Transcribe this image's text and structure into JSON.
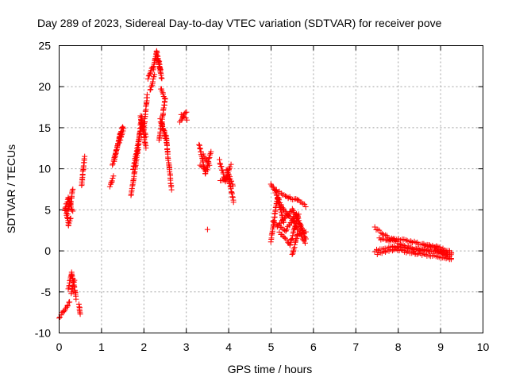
{
  "chart_data": {
    "type": "scatter",
    "title": "Day 289 of 2023, Sidereal Day-to-day VTEC variation (SDTVAR) for receiver pove",
    "xlabel": "GPS time / hours",
    "ylabel": "SDTVAR / TECUs",
    "xlim": [
      0,
      10
    ],
    "ylim": [
      -10,
      25
    ],
    "xticks": [
      0,
      1,
      2,
      3,
      4,
      5,
      6,
      7,
      8,
      9,
      10
    ],
    "yticks": [
      -10,
      -5,
      0,
      5,
      10,
      15,
      20,
      25
    ],
    "grid": true,
    "marker": "+",
    "color": "#ff0000",
    "series": [
      {
        "name": "SDTVAR",
        "segments": [
          {
            "x": [
              0.0,
              0.1,
              0.2,
              0.25
            ],
            "y": [
              -8.2,
              -7.4,
              -6.6,
              -6.2
            ]
          },
          {
            "x": [
              0.13,
              0.22,
              0.32
            ],
            "y": [
              5.0,
              6.4,
              4.8
            ]
          },
          {
            "x": [
              0.15,
              0.22,
              0.28
            ],
            "y": [
              5.2,
              3.2,
              4.0
            ]
          },
          {
            "x": [
              0.2,
              0.25
            ],
            "y": [
              4.5,
              6.0
            ]
          },
          {
            "x": [
              0.27,
              0.32
            ],
            "y": [
              5.5,
              7.6
            ]
          },
          {
            "x": [
              0.22,
              0.3,
              0.4
            ],
            "y": [
              -4.5,
              -2.7,
              -5.8
            ]
          },
          {
            "x": [
              0.28,
              0.36
            ],
            "y": [
              -5.2,
              -3.5
            ]
          },
          {
            "x": [
              0.47,
              0.5
            ],
            "y": [
              -6.5,
              -7.8
            ]
          },
          {
            "x": [
              0.53,
              0.6
            ],
            "y": [
              8.0,
              11.5
            ]
          },
          {
            "x": [
              1.2,
              1.28
            ],
            "y": [
              7.8,
              9.0
            ]
          },
          {
            "x": [
              1.26,
              1.5
            ],
            "y": [
              10.5,
              15.2
            ]
          },
          {
            "x": [
              1.3,
              1.45
            ],
            "y": [
              11.0,
              14.5
            ]
          },
          {
            "x": [
              1.42,
              1.52
            ],
            "y": [
              13.2,
              14.8
            ]
          },
          {
            "x": [
              1.7,
              1.85,
              1.95
            ],
            "y": [
              6.8,
              12.0,
              16.5
            ]
          },
          {
            "x": [
              1.75,
              1.95,
              2.05
            ],
            "y": [
              10.0,
              15.5,
              14.0
            ]
          },
          {
            "x": [
              1.92,
              2.05
            ],
            "y": [
              16.5,
              12.5
            ]
          },
          {
            "x": [
              2.0,
              2.08
            ],
            "y": [
              15.0,
              19.0
            ]
          },
          {
            "x": [
              2.1,
              2.2
            ],
            "y": [
              21.0,
              22.5
            ]
          },
          {
            "x": [
              2.15,
              2.25
            ],
            "y": [
              19.5,
              21.5
            ]
          },
          {
            "x": [
              2.22,
              2.3,
              2.38
            ],
            "y": [
              22.0,
              24.3,
              22.0
            ]
          },
          {
            "x": [
              2.28,
              2.36,
              2.42
            ],
            "y": [
              23.5,
              23.0,
              21.0
            ]
          },
          {
            "x": [
              2.36,
              2.5
            ],
            "y": [
              13.5,
              18.5
            ]
          },
          {
            "x": [
              2.4,
              2.5
            ],
            "y": [
              19.8,
              18.5
            ]
          },
          {
            "x": [
              2.38,
              2.52,
              2.65
            ],
            "y": [
              16.0,
              14.0,
              7.5
            ]
          },
          {
            "x": [
              2.42,
              2.55
            ],
            "y": [
              15.5,
              13.0
            ]
          },
          {
            "x": [
              2.85,
              3.0
            ],
            "y": [
              15.8,
              17.0
            ]
          },
          {
            "x": [
              2.88,
              3.02
            ],
            "y": [
              16.5,
              16.0
            ]
          },
          {
            "x": [
              3.3,
              3.45,
              3.58
            ],
            "y": [
              13.0,
              9.5,
              12.0
            ]
          },
          {
            "x": [
              3.32,
              3.5
            ],
            "y": [
              10.5,
              9.8
            ]
          },
          {
            "x": [
              3.4,
              3.55
            ],
            "y": [
              11.8,
              10.5
            ]
          },
          {
            "x": [
              3.5
            ],
            "y": [
              2.6
            ]
          },
          {
            "x": [
              3.78,
              3.92,
              4.05
            ],
            "y": [
              11.0,
              8.5,
              10.5
            ]
          },
          {
            "x": [
              3.8,
              4.0,
              4.12
            ],
            "y": [
              8.5,
              8.8,
              6.0
            ]
          },
          {
            "x": [
              3.95,
              4.1
            ],
            "y": [
              10.0,
              8.0
            ]
          },
          {
            "x": [
              5.0,
              5.3,
              5.55,
              5.8
            ],
            "y": [
              8.2,
              5.0,
              3.5,
              1.0
            ]
          },
          {
            "x": [
              5.0,
              5.15,
              5.3
            ],
            "y": [
              1.2,
              6.5,
              3.5
            ]
          },
          {
            "x": [
              5.05,
              5.35,
              5.6,
              5.82
            ],
            "y": [
              3.5,
              2.5,
              4.5,
              1.5
            ]
          },
          {
            "x": [
              5.1,
              5.4,
              5.62,
              5.82
            ],
            "y": [
              7.5,
              6.5,
              6.2,
              5.5
            ]
          },
          {
            "x": [
              5.15,
              5.5,
              5.75
            ],
            "y": [
              3.0,
              5.0,
              2.5
            ]
          },
          {
            "x": [
              5.5,
              5.62,
              5.82
            ],
            "y": [
              -0.5,
              2.0,
              2.2
            ]
          },
          {
            "x": [
              5.2,
              5.45,
              5.65
            ],
            "y": [
              2.2,
              0.8,
              4.5
            ]
          },
          {
            "x": [
              7.45,
              7.8,
              8.3,
              8.8,
              9.25
            ],
            "y": [
              2.8,
              1.5,
              1.2,
              0.5,
              -0.5
            ]
          },
          {
            "x": [
              7.45,
              7.9,
              8.5,
              9.0,
              9.25
            ],
            "y": [
              0.0,
              0.5,
              0.2,
              -0.2,
              -0.8
            ]
          },
          {
            "x": [
              7.5,
              7.9,
              8.4,
              9.25
            ],
            "y": [
              -0.3,
              0.2,
              -0.3,
              -1.0
            ]
          },
          {
            "x": [
              7.55,
              7.9,
              8.3,
              9.25
            ],
            "y": [
              1.5,
              1.2,
              0.3,
              -0.3
            ]
          },
          {
            "x": [
              8.6,
              8.9,
              9.25
            ],
            "y": [
              0.8,
              0.5,
              -0.2
            ]
          }
        ]
      }
    ]
  }
}
